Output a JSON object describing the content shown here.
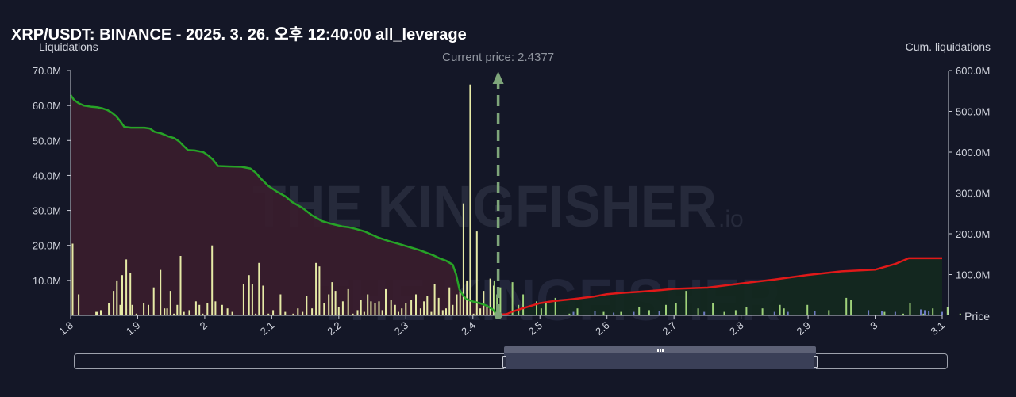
{
  "title": "XRP/USDT: BINANCE - 2025. 3. 26. 오후 12:40:00 all_leverage",
  "watermark_brand": "THE KINGFISHER",
  "watermark_suffix": ".io",
  "current_price_label": "Current price: 2.4377",
  "chart_data": {
    "type": "bar",
    "title": "XRP/USDT: BINANCE - 2025. 3. 26. 오후 12:40:00 all_leverage",
    "current_price": 2.4377,
    "x_axis": {
      "label": "Price",
      "range": [
        1.8,
        3.1
      ],
      "ticks": [
        1.8,
        1.9,
        2.0,
        2.1,
        2.2,
        2.3,
        2.4,
        2.5,
        2.6,
        2.7,
        2.8,
        2.9,
        3.0,
        3.1
      ],
      "tick_labels": [
        "1.8",
        "1.9",
        "2",
        "2.1",
        "2.2",
        "2.3",
        "2.4",
        "2.5",
        "2.6",
        "2.7",
        "2.8",
        "2.9",
        "3",
        "3.1"
      ]
    },
    "y_axis_left": {
      "label": "Liquidations",
      "range": [
        0,
        70
      ],
      "unit": "M",
      "ticks": [
        10,
        20,
        30,
        40,
        50,
        60,
        70
      ],
      "tick_labels": [
        "10.0M",
        "20.0M",
        "30.0M",
        "40.0M",
        "50.0M",
        "60.0M",
        "70.0M"
      ]
    },
    "y_axis_right": {
      "label": "Cum. liquidations",
      "range": [
        0,
        600
      ],
      "unit": "M",
      "ticks": [
        100,
        200,
        300,
        400,
        500,
        600
      ],
      "tick_labels": [
        "100.0M",
        "200.0M",
        "300.0M",
        "400.0M",
        "500.0M",
        "600.0M"
      ]
    },
    "grid": false,
    "colors": {
      "long_bars": "#e6eaa6",
      "short_bars": "#9fd27a",
      "small_bars": "#6f7cc2",
      "cum_long_line": "#27a327",
      "cum_long_fill": "#3a1d2d",
      "cum_short_line": "#e01919",
      "cum_short_fill": "#13291f",
      "current_price_line": "#7ea57a"
    },
    "series": [
      {
        "name": "long liquidations",
        "x": [
          1.803,
          1.812,
          1.838,
          1.84,
          1.845,
          1.857,
          1.864,
          1.869,
          1.874,
          1.877,
          1.883,
          1.889,
          1.892,
          1.898,
          1.909,
          1.916,
          1.924,
          1.934,
          1.94,
          1.944,
          1.949,
          1.954,
          1.959,
          1.964,
          1.969,
          1.977,
          1.987,
          1.992,
          1.997,
          2.004,
          2.011,
          2.016,
          2.026,
          2.034,
          2.041,
          2.058,
          2.066,
          2.071,
          2.076,
          2.081,
          2.087,
          2.095,
          2.102,
          2.113,
          2.12,
          2.132,
          2.139,
          2.146,
          2.152,
          2.16,
          2.166,
          2.171,
          2.178,
          2.185,
          2.19,
          2.195,
          2.2,
          2.206,
          2.214,
          2.221,
          2.228,
          2.233,
          2.238,
          2.243,
          2.248,
          2.254,
          2.26,
          2.265,
          2.27,
          2.278,
          2.284,
          2.289,
          2.294,
          2.3,
          2.308,
          2.315,
          2.322,
          2.327,
          2.332,
          2.338,
          2.343,
          2.349,
          2.355,
          2.36,
          2.365,
          2.37,
          2.376,
          2.381,
          2.386,
          2.391,
          2.396,
          2.401,
          2.406,
          2.411,
          2.416,
          2.421,
          2.426,
          2.431
        ],
        "values": [
          20.5,
          6,
          1,
          1,
          1.5,
          3.5,
          7,
          10,
          3,
          11.5,
          16,
          12,
          3,
          0.5,
          3.5,
          3,
          8,
          13,
          2,
          2,
          7,
          0.5,
          3,
          17,
          1,
          1.5,
          4,
          3,
          0.5,
          3.5,
          20,
          4,
          3,
          2,
          1,
          9,
          11.5,
          9,
          0.5,
          15,
          8.5,
          0.5,
          1.5,
          6,
          1,
          0.5,
          2,
          1,
          5.5,
          2,
          15,
          14,
          3.5,
          6,
          9.5,
          7,
          2.5,
          4,
          7.5,
          0.5,
          1.5,
          4.5,
          1,
          6,
          4,
          3.5,
          4,
          1.5,
          7.5,
          4.5,
          3,
          1,
          2,
          3.5,
          4.5,
          6,
          2,
          4,
          5.5,
          1,
          9,
          5,
          1.5,
          2,
          8,
          3,
          6,
          7,
          32,
          10,
          66,
          0.5,
          24,
          2,
          7,
          3,
          10.5,
          8.5
        ]
      },
      {
        "name": "short liquidations",
        "x": [
          2.432,
          2.436,
          2.441,
          2.459,
          2.468,
          2.475,
          2.495,
          2.502,
          2.509,
          2.523,
          2.544,
          2.556,
          2.595,
          2.621,
          2.648,
          2.663,
          2.688,
          2.703,
          2.718,
          2.736,
          2.758,
          2.775,
          2.792,
          2.808,
          2.832,
          2.858,
          2.864,
          2.899,
          2.931,
          2.957,
          2.964,
          3.014,
          3.042,
          3.052,
          3.072,
          3.086,
          3.108,
          3.127
        ],
        "values": [
          10,
          6,
          8,
          9.5,
          3,
          6,
          4,
          2,
          3.5,
          5,
          0.5,
          2,
          1,
          1,
          2.5,
          1.5,
          3,
          3.5,
          7,
          2,
          3.5,
          1,
          1.5,
          2.5,
          2,
          3,
          2,
          3,
          1.5,
          5,
          4.5,
          1,
          0.5,
          3.5,
          0.5,
          2,
          2.5,
          0.5
        ]
      },
      {
        "name": "small liquidations",
        "x": [
          2.55,
          2.582,
          2.61,
          2.64,
          2.678,
          2.745,
          2.85,
          2.87,
          2.91,
          2.99,
          3.01,
          3.03,
          3.068,
          3.074,
          3.08,
          3.1
        ],
        "values": [
          1,
          1.2,
          0.8,
          1,
          1.3,
          1,
          1,
          1,
          1.2,
          1.5,
          1.3,
          1,
          1.7,
          1.5,
          1.2,
          1
        ]
      },
      {
        "name": "cumulative long liquidations",
        "x": [
          1.8,
          1.805,
          1.812,
          1.82,
          1.832,
          1.84,
          1.848,
          1.855,
          1.862,
          1.868,
          1.874,
          1.88,
          1.89,
          1.91,
          1.918,
          1.925,
          1.935,
          1.945,
          1.955,
          1.962,
          1.968,
          1.975,
          1.985,
          1.998,
          2.005,
          2.012,
          2.02,
          2.035,
          2.055,
          2.068,
          2.076,
          2.085,
          2.095,
          2.108,
          2.12,
          2.13,
          2.145,
          2.16,
          2.175,
          2.185,
          2.195,
          2.205,
          2.215,
          2.225,
          2.238,
          2.25,
          2.26,
          2.275,
          2.29,
          2.3,
          2.31,
          2.32,
          2.33,
          2.34,
          2.35,
          2.36,
          2.37,
          2.375,
          2.38,
          2.385,
          2.39,
          2.4,
          2.41,
          2.42,
          2.43,
          2.437
        ],
        "values": [
          540,
          528,
          520,
          514,
          511,
          510,
          507,
          503,
          496,
          488,
          476,
          462,
          460,
          460,
          458,
          450,
          446,
          439,
          434,
          426,
          416,
          405,
          404,
          400,
          392,
          382,
          366,
          365,
          364,
          360,
          350,
          333,
          317,
          303,
          292,
          278,
          264,
          245,
          231,
          226,
          222,
          218,
          216,
          212,
          206,
          197,
          190,
          182,
          175,
          170,
          165,
          160,
          154,
          148,
          140,
          134,
          124,
          100,
          63,
          50,
          40,
          34,
          30,
          24,
          14,
          0
        ]
      },
      {
        "name": "cumulative short liquidations",
        "x": [
          2.437,
          2.44,
          2.45,
          2.46,
          2.48,
          2.5,
          2.52,
          2.55,
          2.58,
          2.6,
          2.62,
          2.65,
          2.68,
          2.7,
          2.75,
          2.8,
          2.85,
          2.9,
          2.95,
          3.0,
          3.03,
          3.05,
          3.08,
          3.1
        ],
        "values": [
          0,
          2,
          3,
          10,
          20,
          30,
          35,
          40,
          46,
          52,
          55,
          58,
          62,
          65,
          68,
          78,
          88,
          99,
          108,
          112,
          126,
          140,
          140,
          140
        ]
      }
    ]
  }
}
